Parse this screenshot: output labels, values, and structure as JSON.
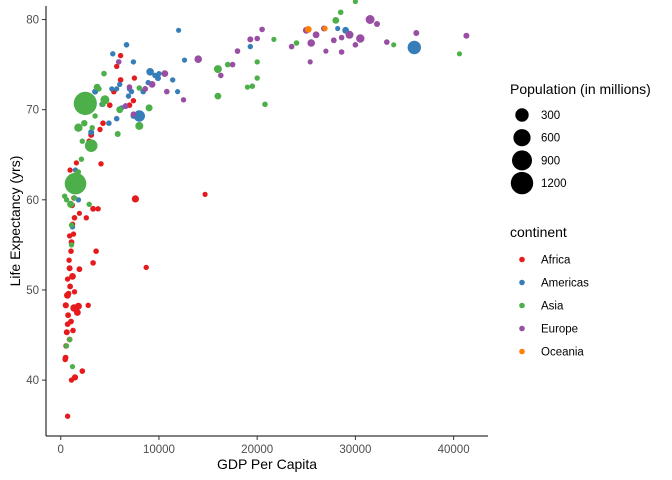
{
  "chart_data": {
    "type": "scatter",
    "xlabel": "GDP Per Capita",
    "ylabel": "Life Expectancy (yrs)",
    "xlim": [
      -1500,
      43500
    ],
    "ylim": [
      33.8,
      81.5
    ],
    "x_ticks": [
      0,
      10000,
      20000,
      30000,
      40000
    ],
    "x_tick_labels": [
      "0",
      "10000",
      "20000",
      "30000",
      "40000"
    ],
    "y_ticks": [
      40,
      50,
      60,
      70,
      80
    ],
    "y_tick_labels": [
      "40",
      "50",
      "60",
      "70",
      "80"
    ],
    "grid": false,
    "size_legend": {
      "title": "Population (in millions)",
      "values": [
        300,
        600,
        900,
        1200
      ],
      "labels": [
        "300",
        "600",
        "900",
        "1200"
      ]
    },
    "color_legend": {
      "title": "continent",
      "position": "right",
      "entries": [
        {
          "name": "Africa",
          "color": "#e41a1c"
        },
        {
          "name": "Americas",
          "color": "#377eb8"
        },
        {
          "name": "Asia",
          "color": "#4daf4a"
        },
        {
          "name": "Europe",
          "color": "#984ea3"
        },
        {
          "name": "Oceania",
          "color": "#ff7f00"
        }
      ]
    },
    "series": [
      {
        "name": "Africa",
        "color": "#e41a1c",
        "points": [
          [
            500,
            42.5,
            8
          ],
          [
            450,
            42.3,
            5
          ],
          [
            550,
            43.8,
            6
          ],
          [
            620,
            45.3,
            10
          ],
          [
            700,
            46.2,
            6
          ],
          [
            750,
            47.2,
            8
          ],
          [
            520,
            48.3,
            12
          ],
          [
            680,
            49.4,
            20
          ],
          [
            800,
            49.6,
            6
          ],
          [
            950,
            50.4,
            8
          ],
          [
            700,
            51.2,
            4
          ],
          [
            900,
            52.4,
            10
          ],
          [
            850,
            53.3,
            4
          ],
          [
            1050,
            54.3,
            6
          ],
          [
            1100,
            55.3,
            8
          ],
          [
            900,
            56.0,
            3
          ],
          [
            1300,
            56.2,
            4
          ],
          [
            1200,
            57.3,
            3
          ],
          [
            1400,
            58.0,
            6
          ],
          [
            1150,
            59.4,
            10
          ],
          [
            1350,
            60.2,
            6
          ],
          [
            950,
            63.3,
            4
          ],
          [
            1800,
            62.5,
            3
          ],
          [
            1600,
            64.1,
            2
          ],
          [
            1900,
            58.5,
            2
          ],
          [
            1200,
            51.5,
            20
          ],
          [
            1400,
            49.8,
            3
          ],
          [
            1350,
            48.0,
            35
          ],
          [
            1700,
            47.5,
            20
          ],
          [
            1800,
            48.2,
            25
          ],
          [
            2800,
            48.3,
            4
          ],
          [
            1100,
            40.0,
            4
          ],
          [
            1450,
            40.3,
            12
          ],
          [
            2200,
            41.0,
            5
          ],
          [
            700,
            36.0,
            4
          ],
          [
            900,
            44.5,
            8
          ],
          [
            1050,
            46.5,
            8
          ],
          [
            1250,
            45.5,
            6
          ],
          [
            3300,
            53.0,
            5
          ],
          [
            3600,
            54.3,
            5
          ],
          [
            3300,
            59.0,
            8
          ],
          [
            3800,
            59.0,
            4
          ],
          [
            2900,
            66.5,
            6
          ],
          [
            3100,
            67.2,
            10
          ],
          [
            4000,
            67.8,
            4
          ],
          [
            4300,
            68.5,
            6
          ],
          [
            5000,
            70.5,
            5
          ],
          [
            5700,
            74.8,
            3
          ],
          [
            6100,
            73.3,
            5
          ],
          [
            7000,
            70.5,
            5
          ],
          [
            7400,
            71.0,
            4
          ],
          [
            7500,
            73.5,
            3
          ],
          [
            7600,
            60.1,
            30
          ],
          [
            8700,
            52.5,
            3
          ],
          [
            14700,
            60.6,
            2
          ],
          [
            4100,
            64.0,
            3
          ],
          [
            5400,
            72.0,
            5
          ],
          [
            6100,
            76.0,
            3
          ],
          [
            1900,
            52.3,
            8
          ],
          [
            2600,
            58.0,
            3
          ]
        ]
      },
      {
        "name": "Americas",
        "color": "#377eb8",
        "points": [
          [
            1200,
            57.0,
            3
          ],
          [
            1800,
            60.0,
            3
          ],
          [
            2000,
            62.5,
            3
          ],
          [
            3100,
            67.5,
            10
          ],
          [
            3500,
            72.0,
            10
          ],
          [
            4200,
            70.6,
            4
          ],
          [
            4900,
            68.5,
            5
          ],
          [
            5200,
            72.3,
            2
          ],
          [
            5300,
            76.2,
            4
          ],
          [
            5700,
            69.0,
            5
          ],
          [
            6000,
            72.8,
            4
          ],
          [
            6200,
            70.2,
            4
          ],
          [
            6700,
            77.2,
            5
          ],
          [
            6900,
            71.5,
            3
          ],
          [
            7000,
            72.3,
            3
          ],
          [
            7200,
            72.0,
            4
          ],
          [
            7400,
            69.3,
            7
          ],
          [
            8000,
            69.3,
            180
          ],
          [
            8400,
            72.0,
            5
          ],
          [
            9100,
            74.2,
            40
          ],
          [
            9600,
            73.8,
            6
          ],
          [
            9900,
            73.5,
            10
          ],
          [
            11400,
            73.3,
            3
          ],
          [
            11900,
            72.0,
            2
          ],
          [
            12600,
            75.5,
            2
          ],
          [
            19300,
            77.0,
            3
          ],
          [
            36000,
            76.9,
            300
          ],
          [
            28200,
            79.0,
            2
          ],
          [
            29000,
            78.8,
            20
          ],
          [
            7400,
            75.3,
            3
          ],
          [
            10000,
            74.0,
            2
          ],
          [
            1500,
            63.3,
            3
          ],
          [
            8900,
            73.0,
            4
          ],
          [
            12000,
            78.8,
            2
          ],
          [
            5700,
            72.3,
            2
          ]
        ]
      },
      {
        "name": "Asia",
        "color": "#4daf4a",
        "points": [
          [
            900,
            44.5,
            3
          ],
          [
            400,
            60.4,
            3
          ],
          [
            600,
            60.0,
            3
          ],
          [
            1000,
            59.5,
            25
          ],
          [
            1100,
            57.2,
            3
          ],
          [
            1100,
            55.0,
            3
          ],
          [
            1800,
            63.1,
            3
          ],
          [
            1400,
            60.2,
            3
          ],
          [
            1500,
            61.8,
            1100
          ],
          [
            1700,
            63.0,
            3
          ],
          [
            2100,
            64.5,
            3
          ],
          [
            2200,
            66.5,
            3
          ],
          [
            2500,
            70.7,
            1300
          ],
          [
            2900,
            71.0,
            10
          ],
          [
            3100,
            66.0,
            250
          ],
          [
            4500,
            71.1,
            80
          ],
          [
            5800,
            67.3,
            10
          ],
          [
            6000,
            70.0,
            20
          ],
          [
            8000,
            68.2,
            50
          ],
          [
            9000,
            70.2,
            25
          ],
          [
            1800,
            68.0,
            60
          ],
          [
            2400,
            68.5,
            15
          ],
          [
            3200,
            68.0,
            3
          ],
          [
            3900,
            72.3,
            3
          ],
          [
            4400,
            74.0,
            5
          ],
          [
            8000,
            72.4,
            5
          ],
          [
            16000,
            74.5,
            50
          ],
          [
            16000,
            71.5,
            20
          ],
          [
            19500,
            72.6,
            5
          ],
          [
            20000,
            75.3,
            3
          ],
          [
            20000,
            73.5,
            3
          ],
          [
            20800,
            70.6,
            5
          ],
          [
            28000,
            79.9,
            20
          ],
          [
            28500,
            80.8,
            5
          ],
          [
            30000,
            82.0,
            2
          ],
          [
            33900,
            77.2,
            2
          ],
          [
            40600,
            76.2,
            2
          ],
          [
            600,
            43.8,
            2
          ],
          [
            1200,
            41.5,
            2
          ],
          [
            2900,
            59.5,
            3
          ],
          [
            2100,
            70.4,
            20
          ],
          [
            3500,
            69.3,
            3
          ],
          [
            17000,
            75.0,
            5
          ],
          [
            19000,
            72.5,
            2
          ],
          [
            21700,
            77.8,
            2
          ],
          [
            24000,
            77.4,
            5
          ],
          [
            3700,
            72.5,
            20
          ],
          [
            4300,
            70.6,
            3
          ]
        ]
      },
      {
        "name": "Europe",
        "color": "#984ea3",
        "points": [
          [
            5900,
            75.3,
            5
          ],
          [
            6600,
            70.4,
            10
          ],
          [
            7000,
            72.5,
            5
          ],
          [
            7400,
            69.5,
            5
          ],
          [
            8600,
            72.3,
            8
          ],
          [
            9300,
            72.8,
            20
          ],
          [
            10600,
            74.0,
            20
          ],
          [
            10800,
            72.0,
            5
          ],
          [
            12500,
            71.1,
            3
          ],
          [
            14000,
            75.6,
            40
          ],
          [
            16300,
            73.8,
            5
          ],
          [
            17500,
            75.0,
            5
          ],
          [
            18000,
            76.5,
            5
          ],
          [
            19300,
            77.8,
            10
          ],
          [
            20500,
            78.9,
            5
          ],
          [
            20000,
            77.9,
            5
          ],
          [
            23500,
            77.0,
            5
          ],
          [
            25000,
            78.8,
            20
          ],
          [
            26000,
            78.3,
            20
          ],
          [
            25500,
            77.4,
            40
          ],
          [
            26800,
            79.0,
            10
          ],
          [
            27800,
            77.7,
            8
          ],
          [
            28600,
            78.0,
            5
          ],
          [
            29400,
            78.3,
            50
          ],
          [
            30500,
            77.9,
            60
          ],
          [
            31500,
            80.0,
            80
          ],
          [
            32200,
            79.5,
            10
          ],
          [
            33200,
            77.5,
            5
          ],
          [
            36200,
            78.5,
            10
          ],
          [
            41300,
            78.2,
            10
          ],
          [
            28600,
            76.4,
            5
          ],
          [
            30000,
            77.2,
            5
          ],
          [
            27000,
            76.5,
            2
          ],
          [
            25400,
            75.3,
            2
          ]
        ]
      },
      {
        "name": "Oceania",
        "color": "#ff7f00",
        "points": [
          [
            25200,
            78.9,
            20
          ],
          [
            26900,
            79.0,
            4
          ]
        ]
      }
    ]
  }
}
